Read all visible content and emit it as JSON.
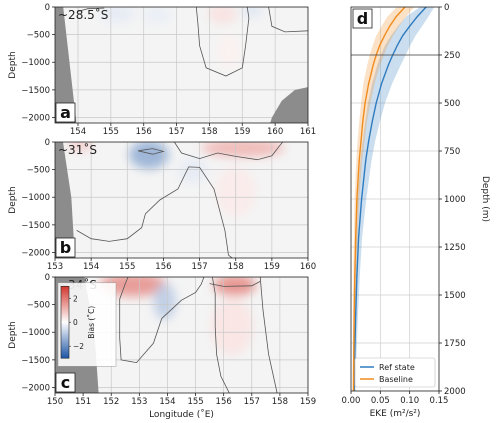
{
  "chart_data": [
    {
      "type": "heatmap",
      "panel_letter": "a",
      "latitude_label": "~28.5˚S",
      "xlim": [
        153.3,
        161
      ],
      "xticks": [
        154,
        155,
        156,
        157,
        158,
        159,
        160,
        161
      ],
      "ylim": [
        -2100,
        0
      ],
      "yticks": [
        0,
        -500,
        -1000,
        -1500,
        -2000
      ],
      "ylabel": "Depth",
      "blobs": [
        {
          "lon": 155.2,
          "depth": -120,
          "sx": 0.55,
          "sy": 170,
          "value": -0.35
        },
        {
          "lon": 156.4,
          "depth": -150,
          "sx": 0.45,
          "sy": 150,
          "value": -0.3
        },
        {
          "lon": 158.4,
          "depth": -130,
          "sx": 0.45,
          "sy": 180,
          "value": 0.45
        },
        {
          "lon": 158.6,
          "depth": -800,
          "sx": 0.35,
          "sy": 320,
          "value": 0.2
        },
        {
          "lon": 159.3,
          "depth": -70,
          "sx": 0.35,
          "sy": 110,
          "value": -0.45
        }
      ]
    },
    {
      "type": "heatmap",
      "panel_letter": "b",
      "latitude_label": "~31˚S",
      "xlim": [
        153,
        160
      ],
      "xticks": [
        153,
        154,
        155,
        156,
        157,
        158,
        159,
        160
      ],
      "ylim": [
        -2100,
        0
      ],
      "yticks": [
        0,
        -500,
        -1000,
        -1500,
        -2000
      ],
      "ylabel": "Depth",
      "blobs": [
        {
          "lon": 155.6,
          "depth": -230,
          "sx": 0.55,
          "sy": 260,
          "value": -1.4
        },
        {
          "lon": 156.8,
          "depth": -520,
          "sx": 0.4,
          "sy": 230,
          "value": -0.35
        },
        {
          "lon": 158.2,
          "depth": -110,
          "sx": 1.15,
          "sy": 160,
          "value": 1.1
        },
        {
          "lon": 158.0,
          "depth": -900,
          "sx": 0.55,
          "sy": 450,
          "value": 0.3
        },
        {
          "lon": 153.7,
          "depth": -60,
          "sx": 0.35,
          "sy": 90,
          "value": 0.9
        }
      ]
    },
    {
      "type": "heatmap",
      "panel_letter": "c",
      "latitude_label": "~34˚S",
      "xlim": [
        150,
        159
      ],
      "xticks": [
        150,
        151,
        152,
        153,
        154,
        155,
        156,
        157,
        158,
        159
      ],
      "xlabel": "Longitude (˚E)",
      "ylim": [
        -2100,
        0
      ],
      "yticks": [
        0,
        -500,
        -1000,
        -1500,
        -2000
      ],
      "ylabel": "Depth",
      "colorbar": {
        "label": "Bias (˚C)",
        "ticks": [
          2,
          0,
          -2
        ],
        "range": [
          -3,
          3
        ]
      },
      "blobs": [
        {
          "lon": 152.8,
          "depth": -140,
          "sx": 1.2,
          "sy": 210,
          "value": 1.6
        },
        {
          "lon": 153.9,
          "depth": -440,
          "sx": 0.4,
          "sy": 330,
          "value": -0.9
        },
        {
          "lon": 156.4,
          "depth": -150,
          "sx": 0.75,
          "sy": 190,
          "value": 1.7
        },
        {
          "lon": 156.3,
          "depth": -900,
          "sx": 0.75,
          "sy": 520,
          "value": 0.4
        }
      ]
    },
    {
      "type": "line",
      "panel_letter": "d",
      "xlabel": "EKE (m²/s²)",
      "ylabel": "Depth (m)",
      "xlim": [
        0,
        0.15
      ],
      "xticks": [
        0.0,
        0.05,
        0.1,
        0.15
      ],
      "xtick_labels": [
        "0.00",
        "0.05",
        "0.10",
        "0.15"
      ],
      "ylim": [
        -2000,
        0
      ],
      "yticks": [
        0,
        -250,
        -500,
        -750,
        -1000,
        -1250,
        -1500,
        -1750,
        -2000
      ],
      "hline_depth": -250,
      "legend": "bottom-right",
      "series": [
        {
          "name": "Ref state",
          "color": "#2f7bbf",
          "depth": [
            0,
            -50,
            -100,
            -150,
            -200,
            -250,
            -300,
            -400,
            -500,
            -600,
            -700,
            -800,
            -1000,
            -1200,
            -1400,
            -1600,
            -1800,
            -2000
          ],
          "values": [
            0.128,
            0.113,
            0.1,
            0.088,
            0.079,
            0.071,
            0.064,
            0.052,
            0.043,
            0.036,
            0.03,
            0.025,
            0.018,
            0.013,
            0.01,
            0.008,
            0.0065,
            0.0055
          ],
          "lower": [
            0.118,
            0.094,
            0.08,
            0.068,
            0.058,
            0.051,
            0.045,
            0.036,
            0.029,
            0.024,
            0.02,
            0.016,
            0.011,
            0.008,
            0.006,
            0.005,
            0.004,
            0.0035
          ],
          "upper": [
            0.142,
            0.132,
            0.121,
            0.11,
            0.101,
            0.093,
            0.085,
            0.07,
            0.058,
            0.049,
            0.041,
            0.035,
            0.026,
            0.019,
            0.015,
            0.012,
            0.0095,
            0.0078
          ]
        },
        {
          "name": "Baseline",
          "color": "#f08c1e",
          "depth": [
            0,
            -50,
            -100,
            -150,
            -200,
            -250,
            -300,
            -400,
            -500,
            -600,
            -700,
            -800,
            -1000,
            -1200,
            -1400,
            -1600,
            -1800,
            -2000
          ],
          "values": [
            0.092,
            0.077,
            0.066,
            0.057,
            0.049,
            0.043,
            0.038,
            0.03,
            0.024,
            0.02,
            0.017,
            0.014,
            0.01,
            0.008,
            0.0065,
            0.0055,
            0.0048,
            0.0042
          ],
          "lower": [
            0.078,
            0.062,
            0.052,
            0.043,
            0.037,
            0.032,
            0.028,
            0.021,
            0.017,
            0.014,
            0.011,
            0.009,
            0.006,
            0.005,
            0.004,
            0.0035,
            0.003,
            0.0025
          ],
          "upper": [
            0.108,
            0.094,
            0.082,
            0.072,
            0.063,
            0.056,
            0.05,
            0.04,
            0.033,
            0.027,
            0.023,
            0.019,
            0.014,
            0.011,
            0.009,
            0.0075,
            0.0065,
            0.0058
          ]
        }
      ]
    }
  ]
}
